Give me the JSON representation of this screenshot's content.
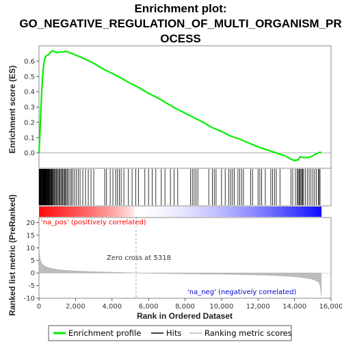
{
  "chart_data": {
    "type": "line",
    "title_lines": [
      "Enrichment plot:",
      "GO_NEGATIVE_REGULATION_OF_MULTI_ORGANISM_PR",
      "OCESS"
    ],
    "xlabel": "Rank in Ordered Dataset",
    "x_ticks": [
      0,
      2000,
      4000,
      6000,
      8000,
      10000,
      12000,
      14000,
      16000
    ],
    "x_tick_labels": [
      "0",
      "2,000",
      "4,000",
      "6,000",
      "8,000",
      "10,000",
      "12,000",
      "14,000",
      "16,000"
    ],
    "xlim": [
      0,
      16000
    ],
    "dataset_size": 15460,
    "es_panel": {
      "ylabel": "Enrichment score (ES)",
      "ylim": [
        -0.1,
        0.7
      ],
      "y_ticks": [
        0.0,
        0.1,
        0.2,
        0.3,
        0.4,
        0.5,
        0.6
      ],
      "y_tick_labels": [
        "0.0",
        "0.1",
        "0.2",
        "0.3",
        "0.4",
        "0.5",
        "0.6"
      ],
      "series": {
        "name": "Enrichment profile",
        "color": "#00ee00",
        "x": [
          0,
          50,
          100,
          150,
          200,
          250,
          300,
          350,
          400,
          450,
          500,
          550,
          600,
          650,
          700,
          750,
          800,
          900,
          1000,
          1100,
          1200,
          1300,
          1400,
          1500,
          1600,
          1800,
          2000,
          2500,
          3000,
          3500,
          4000,
          4500,
          5000,
          5500,
          6000,
          6500,
          7000,
          7500,
          8000,
          8500,
          9000,
          9500,
          10000,
          10500,
          11000,
          11500,
          12000,
          12500,
          13000,
          13500,
          13800,
          14000,
          14200,
          14300,
          14500,
          14700,
          14900,
          15000,
          15100,
          15200,
          15300,
          15400,
          15460
        ],
        "y": [
          0.0,
          0.12,
          0.28,
          0.4,
          0.5,
          0.57,
          0.61,
          0.625,
          0.635,
          0.638,
          0.64,
          0.645,
          0.655,
          0.66,
          0.665,
          0.668,
          0.665,
          0.66,
          0.655,
          0.66,
          0.66,
          0.658,
          0.662,
          0.663,
          0.66,
          0.65,
          0.64,
          0.615,
          0.585,
          0.55,
          0.52,
          0.49,
          0.455,
          0.425,
          0.39,
          0.36,
          0.325,
          0.29,
          0.26,
          0.23,
          0.2,
          0.165,
          0.14,
          0.11,
          0.09,
          0.065,
          0.04,
          0.02,
          0.0,
          -0.02,
          -0.04,
          -0.05,
          -0.045,
          -0.025,
          -0.03,
          -0.03,
          -0.025,
          -0.02,
          -0.01,
          -0.005,
          0.0,
          0.005,
          0.0
        ]
      }
    },
    "hits": {
      "name": "Hits",
      "color": "#000000",
      "ranks": [
        15,
        30,
        45,
        60,
        75,
        90,
        110,
        130,
        150,
        170,
        190,
        210,
        230,
        250,
        270,
        290,
        310,
        330,
        350,
        370,
        390,
        410,
        430,
        450,
        470,
        490,
        510,
        530,
        560,
        590,
        620,
        650,
        680,
        710,
        740,
        780,
        820,
        860,
        900,
        950,
        1000,
        1050,
        1100,
        1150,
        1200,
        1250,
        1300,
        1350,
        1400,
        1450,
        1500,
        1560,
        1620,
        1700,
        1780,
        1860,
        1950,
        2050,
        2150,
        2250,
        2400,
        2550,
        2700,
        2850,
        3000,
        3600,
        3700,
        3900,
        4050,
        4200,
        4300,
        4400,
        4500,
        4650,
        4900,
        5100,
        5300,
        5450,
        5800,
        6000,
        6200,
        6400,
        6700,
        6900,
        7200,
        7400,
        7600,
        8300,
        8400,
        8500,
        8600,
        8700,
        9300,
        9500,
        9600,
        9700,
        10000,
        10200,
        10400,
        10500,
        10600,
        10700,
        10900,
        11000,
        11100,
        11200,
        11600,
        11700,
        12000,
        12100,
        12200,
        12400,
        12700,
        12800,
        12900,
        13000,
        13200,
        13800,
        13900,
        14050,
        14150,
        14200,
        14250,
        14300,
        14350,
        14400,
        14450,
        14500,
        14600,
        14700,
        14800,
        14900,
        15000,
        15100,
        15200,
        15300,
        15350,
        15400
      ]
    },
    "ranked_metric": {
      "name": "Ranking metric scores",
      "ylabel": "Ranked list metric (PreRanked)",
      "ylim": [
        -10,
        22
      ],
      "y_ticks": [
        -10,
        -5,
        0,
        5,
        10,
        15,
        20
      ],
      "y_tick_labels": [
        "-10",
        "-5",
        "0",
        "5",
        "10",
        "15",
        "20"
      ],
      "x": [
        0,
        20,
        50,
        100,
        200,
        300,
        500,
        800,
        1200,
        2000,
        3000,
        4000,
        5318,
        7000,
        9000,
        11000,
        12500,
        13500,
        14200,
        14800,
        15100,
        15250,
        15350,
        15400,
        15430,
        15460
      ],
      "y": [
        12,
        8,
        6,
        4.5,
        3.5,
        2.8,
        2.2,
        1.6,
        1.2,
        0.8,
        0.5,
        0.3,
        0.0,
        -0.2,
        -0.4,
        -0.6,
        -0.9,
        -1.2,
        -1.6,
        -2.2,
        -2.8,
        -3.3,
        -4.0,
        -5.0,
        -6.5,
        -9.0
      ],
      "pos_label": "'na_pos' (positively correlated)",
      "neg_label": "'na_neg' (negatively correlated)",
      "zero_cross_label": "Zero cross at 5318",
      "zero_cross": 5318,
      "pos_color": "#ff0000",
      "neg_color": "#0000ff"
    },
    "legend": {
      "placement": "bottom",
      "entries": [
        "Enrichment profile",
        "Hits",
        "Ranking metric scores"
      ]
    }
  }
}
